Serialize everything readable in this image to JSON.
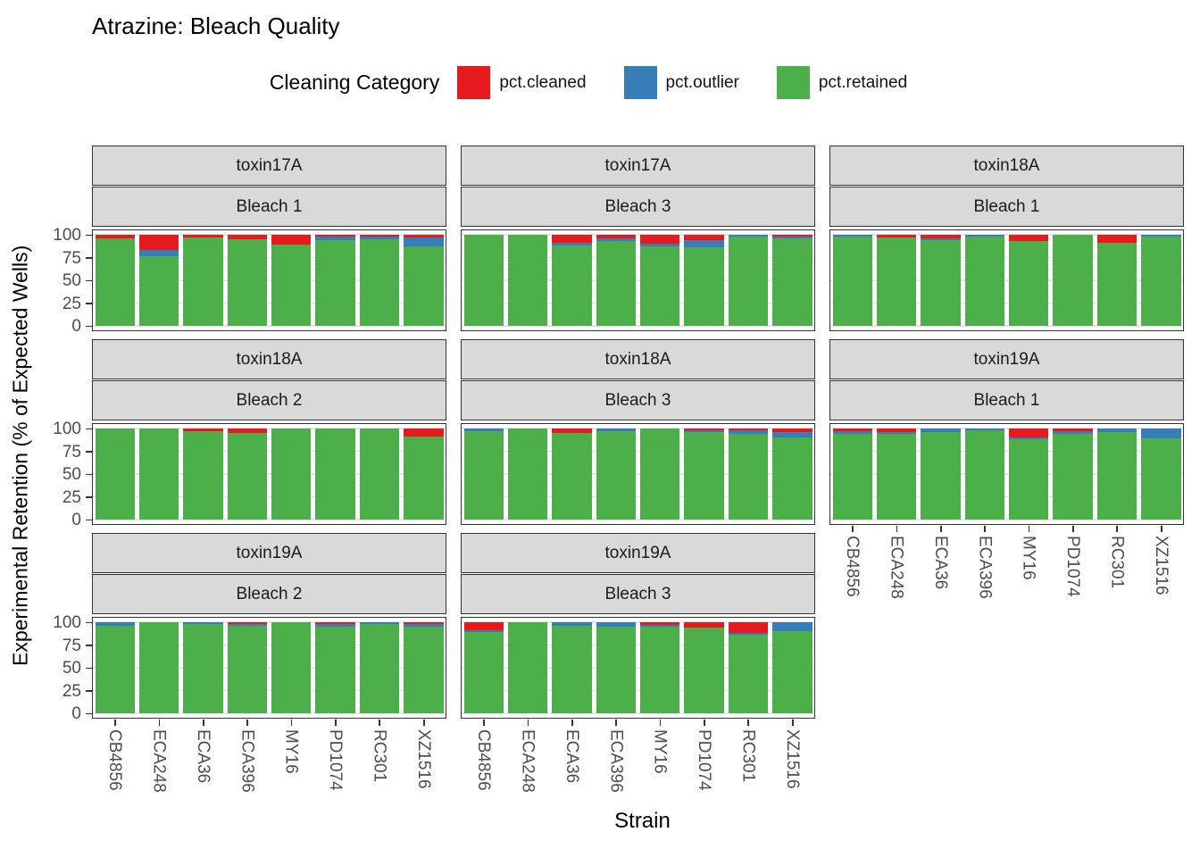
{
  "title": "Atrazine: Bleach Quality",
  "legend": {
    "title": "Cleaning Category",
    "items": [
      {
        "label": "pct.cleaned",
        "color": "#E41A1C"
      },
      {
        "label": "pct.outlier",
        "color": "#377EB8"
      },
      {
        "label": "pct.retained",
        "color": "#4DAF4A"
      }
    ]
  },
  "axes": {
    "y_title": "Experimental Retention (% of Expected Wells)",
    "x_title": "Strain",
    "y_ticks": [
      100,
      75,
      50,
      25,
      0
    ],
    "y_range": [
      0,
      110
    ]
  },
  "chart_data": {
    "type": "bar",
    "stacked": true,
    "grid": true,
    "categories": [
      "CB4856",
      "ECA248",
      "ECA36",
      "ECA396",
      "MY16",
      "PD1074",
      "RC301",
      "XZ1516"
    ],
    "stack_order_bottom_to_top": [
      "pct.retained",
      "pct.outlier",
      "pct.cleaned"
    ],
    "colors": {
      "pct.cleaned": "#E41A1C",
      "pct.outlier": "#377EB8",
      "pct.retained": "#4DAF4A"
    },
    "facets": [
      {
        "toxin": "toxin17A",
        "bleach": "Bleach 1",
        "row": 0,
        "col": 0,
        "xlabels": false,
        "retained": [
          96,
          76,
          97,
          95,
          89,
          94,
          95,
          87
        ],
        "outlier": [
          0,
          7,
          0,
          0,
          0,
          4,
          3,
          10
        ],
        "cleaned": [
          4,
          17,
          3,
          5,
          11,
          2,
          2,
          3
        ]
      },
      {
        "toxin": "toxin17A",
        "bleach": "Bleach 3",
        "row": 0,
        "col": 1,
        "xlabels": false,
        "retained": [
          100,
          100,
          88,
          93,
          87,
          86,
          98,
          96
        ],
        "outlier": [
          0,
          0,
          3,
          3,
          3,
          8,
          2,
          2
        ],
        "cleaned": [
          0,
          0,
          9,
          4,
          10,
          6,
          0,
          2
        ]
      },
      {
        "toxin": "toxin18A",
        "bleach": "Bleach 1",
        "row": 0,
        "col": 2,
        "xlabels": false,
        "retained": [
          98,
          97,
          94,
          98,
          93,
          100,
          91,
          98
        ],
        "outlier": [
          2,
          0,
          2,
          2,
          0,
          0,
          0,
          2
        ],
        "cleaned": [
          0,
          3,
          4,
          0,
          7,
          0,
          9,
          0
        ]
      },
      {
        "toxin": "toxin18A",
        "bleach": "Bleach 2",
        "row": 1,
        "col": 0,
        "xlabels": false,
        "retained": [
          100,
          100,
          97,
          95,
          100,
          100,
          100,
          91
        ],
        "outlier": [
          0,
          0,
          0,
          0,
          0,
          0,
          0,
          0
        ],
        "cleaned": [
          0,
          0,
          3,
          5,
          0,
          0,
          0,
          9
        ]
      },
      {
        "toxin": "toxin18A",
        "bleach": "Bleach 3",
        "row": 1,
        "col": 1,
        "xlabels": false,
        "retained": [
          97,
          100,
          95,
          97,
          100,
          96,
          94,
          90
        ],
        "outlier": [
          3,
          0,
          0,
          3,
          0,
          2,
          4,
          6
        ],
        "cleaned": [
          0,
          0,
          5,
          0,
          0,
          2,
          2,
          4
        ]
      },
      {
        "toxin": "toxin19A",
        "bleach": "Bleach 1",
        "row": 1,
        "col": 2,
        "xlabels": true,
        "retained": [
          94,
          94,
          96,
          98,
          88,
          94,
          96,
          89
        ],
        "outlier": [
          3,
          2,
          4,
          2,
          2,
          3,
          4,
          11
        ],
        "cleaned": [
          3,
          4,
          0,
          0,
          10,
          3,
          0,
          0
        ]
      },
      {
        "toxin": "toxin19A",
        "bleach": "Bleach 2",
        "row": 2,
        "col": 0,
        "xlabels": true,
        "retained": [
          96,
          100,
          98,
          96,
          100,
          95,
          98,
          95
        ],
        "outlier": [
          4,
          0,
          2,
          2,
          0,
          3,
          2,
          3
        ],
        "cleaned": [
          0,
          0,
          0,
          2,
          0,
          2,
          0,
          2
        ]
      },
      {
        "toxin": "toxin19A",
        "bleach": "Bleach 3",
        "row": 2,
        "col": 1,
        "xlabels": true,
        "retained": [
          89,
          100,
          96,
          95,
          95,
          94,
          86,
          90
        ],
        "outlier": [
          2,
          0,
          4,
          5,
          2,
          0,
          2,
          10
        ],
        "cleaned": [
          9,
          0,
          0,
          0,
          3,
          6,
          12,
          0
        ]
      }
    ]
  }
}
